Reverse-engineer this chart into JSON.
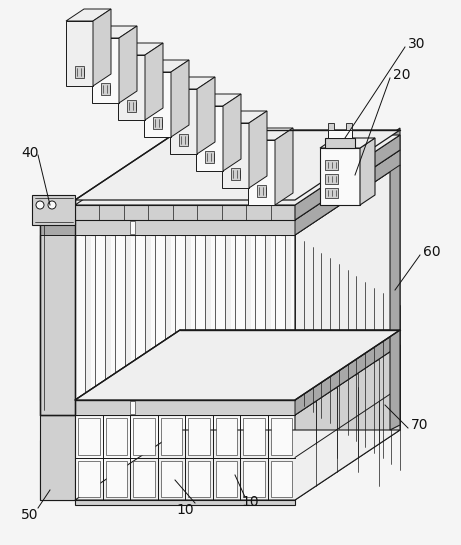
{
  "fig_width": 4.61,
  "fig_height": 5.45,
  "dpi": 100,
  "bg_color": "#f5f5f5",
  "line_color": "#1a1a1a",
  "fill_light": "#efefef",
  "fill_mid": "#d0d0d0",
  "fill_dark": "#a8a8a8",
  "fill_white": "#fafafa",
  "annot_color": "#111111",
  "font_size": 10,
  "annot_lw": 0.7
}
